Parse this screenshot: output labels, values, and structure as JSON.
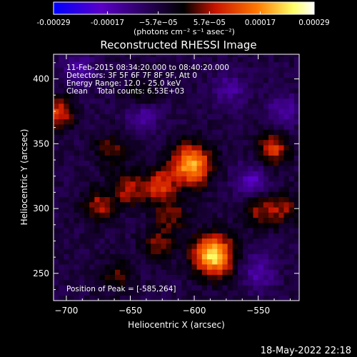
{
  "colorbar": {
    "tick_labels": [
      "-0.00029",
      "-0.00017",
      "−5.7e−05",
      "5.7e−05",
      "0.00017",
      "0.00029"
    ],
    "tick_values": [
      -0.00029,
      -0.00017,
      -5.7e-05,
      5.7e-05,
      0.00017,
      0.00029
    ],
    "unit_label": "(photons cm⁻² s⁻¹ asec⁻²)",
    "range": [
      -0.00029,
      0.00029
    ],
    "colors": [
      "#0000ff",
      "#5a00c8",
      "#000000",
      "#c81400",
      "#ff7800",
      "#ffff66",
      "#ffffff"
    ]
  },
  "chart_data": {
    "type": "heatmap",
    "title": "Reconstructed RHESSI Image",
    "xlabel": "Heliocentric X (arcsec)",
    "ylabel": "Heliocentric Y (arcsec)",
    "xlim": [
      -710,
      -518
    ],
    "ylim": [
      229,
      419
    ],
    "x_ticks": [
      -700,
      -650,
      -600,
      -550
    ],
    "y_ticks": [
      250,
      300,
      350,
      400
    ],
    "annotations": [
      "11-Feb-2015 08:34:20.000 to 08:40:20.000",
      "Detectors: 3F 5F 6F 7F 8F 9F, Att 0",
      "Energy Range: 12.0 - 25.0 keV",
      "Clean    Total counts: 6.53E+03"
    ],
    "peak_label": "Position of Peak = [-585,264]",
    "peak": {
      "x": -585,
      "y": 264,
      "value": 0.00029
    },
    "sources": [
      {
        "x": -585,
        "y": 264,
        "value": 0.00029
      },
      {
        "x": -602,
        "y": 334,
        "value": 0.00026
      },
      {
        "x": -627,
        "y": 318,
        "value": 0.00015
      },
      {
        "x": -651,
        "y": 315,
        "value": 0.00012
      },
      {
        "x": -675,
        "y": 302,
        "value": 0.00012
      },
      {
        "x": -707,
        "y": 374,
        "value": 0.00015
      },
      {
        "x": -538,
        "y": 346,
        "value": 0.00015
      },
      {
        "x": -550,
        "y": 300,
        "value": 0.00011
      },
      {
        "x": -530,
        "y": 300,
        "value": 0.0001
      },
      {
        "x": -628,
        "y": 272,
        "value": 0.0001
      },
      {
        "x": -618,
        "y": 295,
        "value": 0.0001
      },
      {
        "x": -660,
        "y": 248,
        "value": 8e-05
      },
      {
        "x": -640,
        "y": 388,
        "value": 7e-05
      },
      {
        "x": -665,
        "y": 345,
        "value": 9e-05
      }
    ],
    "minima": [
      {
        "x": -555,
        "y": 320,
        "value": -0.00012
      },
      {
        "x": -550,
        "y": 252,
        "value": -0.0001
      },
      {
        "x": -640,
        "y": 372,
        "value": -9e-05
      },
      {
        "x": -690,
        "y": 408,
        "value": -9e-05
      },
      {
        "x": -572,
        "y": 392,
        "value": -8e-05
      },
      {
        "x": -530,
        "y": 375,
        "value": -9e-05
      }
    ]
  },
  "timestamp": "18-May-2022 22:18"
}
